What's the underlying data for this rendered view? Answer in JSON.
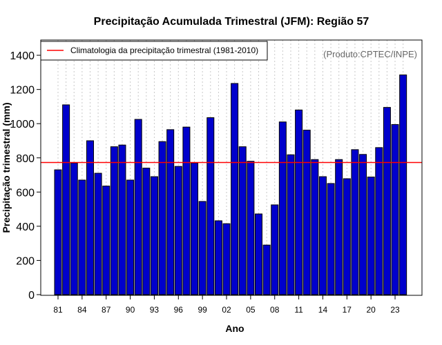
{
  "chart_data": {
    "type": "bar",
    "title": "Precipitação Acumulada Trimestral (JFM): Região 57",
    "xlabel": "Ano",
    "ylabel": "Precipitação trimestral (mm)",
    "credit": "(Produto:CPTEC/INPE)",
    "ylim": [
      0,
      1500
    ],
    "yticks": [
      0,
      200,
      400,
      600,
      800,
      1000,
      1200,
      1400
    ],
    "ytick_labels": [
      "0",
      "200",
      "400",
      "600",
      "800",
      "1000",
      "1200",
      "1400"
    ],
    "categories": [
      1981,
      1982,
      1983,
      1984,
      1985,
      1986,
      1987,
      1988,
      1989,
      1990,
      1991,
      1992,
      1993,
      1994,
      1995,
      1996,
      1997,
      1998,
      1999,
      2000,
      2001,
      2002,
      2003,
      2004,
      2005,
      2006,
      2007,
      2008,
      2009,
      2010,
      2011,
      2012,
      2013,
      2014,
      2015,
      2016,
      2017,
      2018,
      2019,
      2020,
      2021,
      2022,
      2023,
      2024
    ],
    "values": [
      730,
      1110,
      770,
      670,
      900,
      710,
      635,
      865,
      875,
      670,
      1025,
      740,
      690,
      895,
      965,
      750,
      980,
      770,
      545,
      1035,
      432,
      415,
      1235,
      865,
      780,
      472,
      290,
      525,
      1010,
      818,
      1080,
      962,
      790,
      690,
      650,
      790,
      678,
      848,
      820,
      688,
      860,
      1095,
      995,
      1285
    ],
    "xtick_labels": [
      "81",
      "84",
      "87",
      "90",
      "93",
      "96",
      "99",
      "02",
      "05",
      "08",
      "11",
      "14",
      "17",
      "20",
      "23"
    ],
    "xtick_positions": [
      1981,
      1984,
      1987,
      1990,
      1993,
      1996,
      1999,
      2002,
      2005,
      2008,
      2011,
      2014,
      2017,
      2020,
      2023
    ],
    "climatology": {
      "value": 773,
      "label": "Climatologia da precipitação trimestral (1981-2010)",
      "color": "#ff0000"
    },
    "bar_color": "#0000cc",
    "grid": true,
    "legend_position": "top-left"
  }
}
